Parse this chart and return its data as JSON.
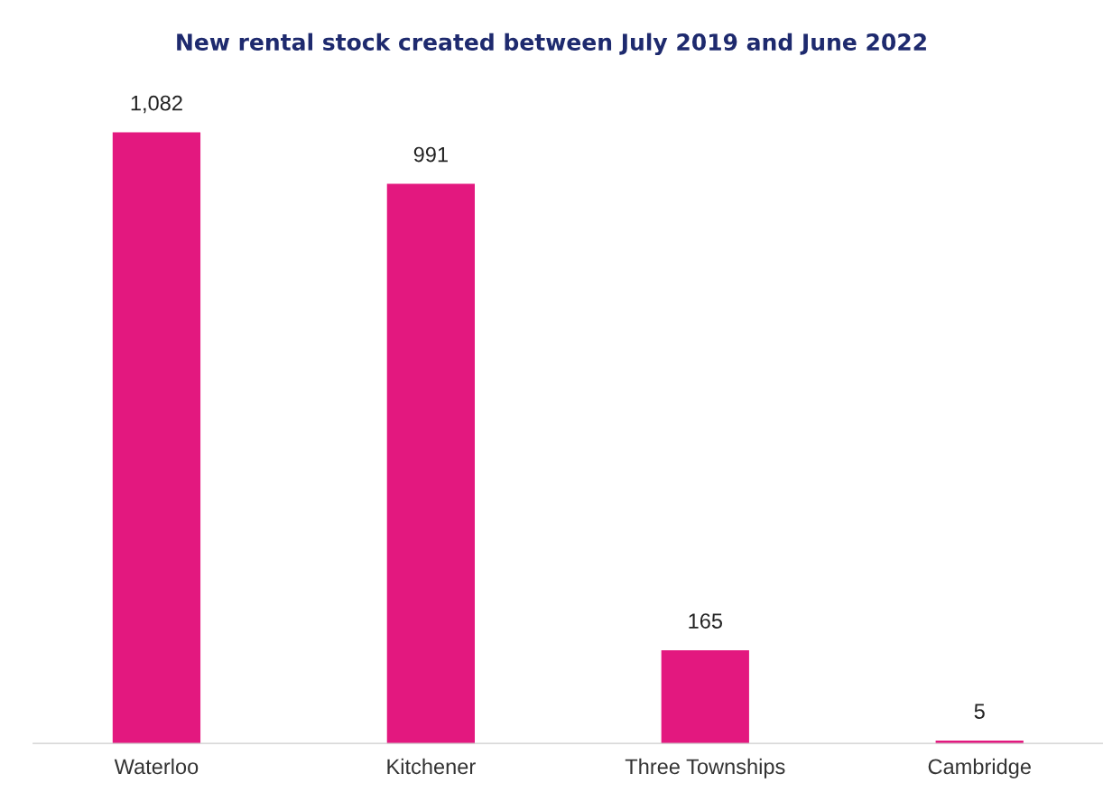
{
  "chart_data": {
    "type": "bar",
    "title": "New rental stock created between July 2019 and June 2022",
    "categories": [
      "Waterloo",
      "Kitchener",
      "Three Townships",
      "Cambridge"
    ],
    "values": [
      1082,
      991,
      165,
      5
    ],
    "value_labels": [
      "1,082",
      "991",
      "165",
      "5"
    ],
    "color": "#e3187f",
    "grid": false,
    "legend": false
  }
}
